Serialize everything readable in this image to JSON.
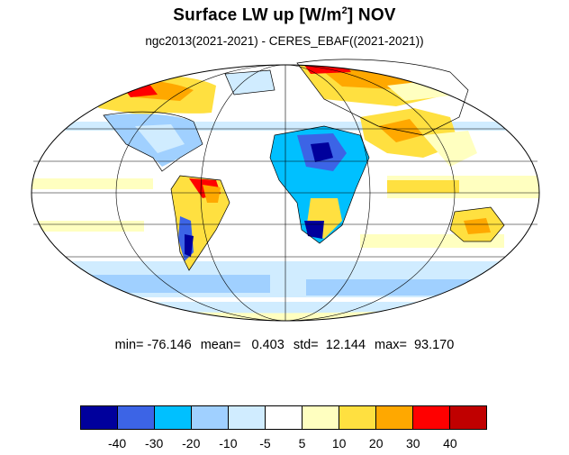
{
  "title": {
    "main": "Surface LW up [W/m",
    "superscript": "2",
    "suffix": "]  NOV"
  },
  "subtitle": "ngc2013(2021-2021) - CERES_EBAF((2021-2021))",
  "stats": {
    "min": "min= -76.146",
    "mean": "mean=   0.403",
    "std": "std=  12.144",
    "max": "max=  93.170"
  },
  "colorbar": {
    "colors": [
      "#00009c",
      "#3c64e6",
      "#00c0ff",
      "#a0d0ff",
      "#d0ecff",
      "#ffffff",
      "#ffffc0",
      "#ffe040",
      "#ffa800",
      "#ff0000",
      "#c00000"
    ],
    "labels": [
      "-40",
      "-30",
      "-20",
      "-10",
      "-5",
      "5",
      "10",
      "20",
      "30",
      "40"
    ]
  },
  "map": {
    "projection": "Mollweide",
    "ocean_fill": "#ffffff",
    "land_outline": "#000000"
  }
}
